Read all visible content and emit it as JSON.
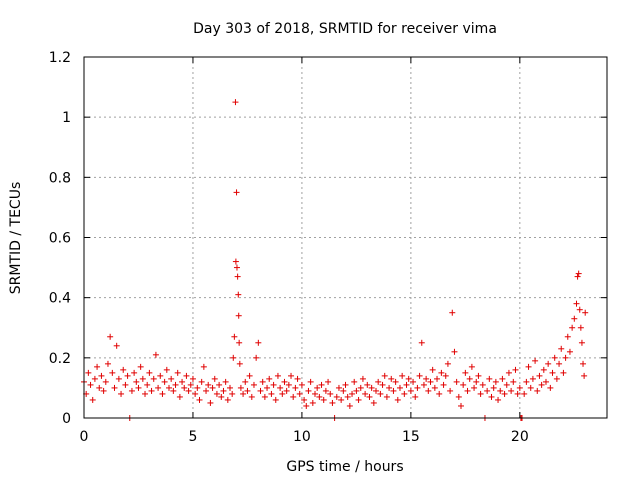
{
  "chart_data": {
    "type": "scatter",
    "title": "Day 303 of 2018, SRMTID for receiver vima",
    "xlabel": "GPS time / hours",
    "ylabel": "SRMTID / TECUs",
    "xlim": [
      0,
      24
    ],
    "ylim": [
      0,
      1.2
    ],
    "x_ticks": [
      0,
      5,
      10,
      15,
      20
    ],
    "x_tick_labels": [
      "0",
      "5",
      "10",
      "15",
      "20"
    ],
    "y_ticks": [
      0,
      0.2,
      0.4,
      0.6,
      0.8,
      1.0,
      1.2
    ],
    "y_tick_labels": [
      "0",
      "0.2",
      "0.4",
      "0.6",
      "0.8",
      "1",
      "1.2"
    ],
    "grid": true,
    "marker": "plus",
    "series": [
      {
        "name": "SRMTID",
        "color": "#e00000",
        "points": [
          [
            0.0,
            0.12
          ],
          [
            0.1,
            0.08
          ],
          [
            0.2,
            0.15
          ],
          [
            0.3,
            0.11
          ],
          [
            0.4,
            0.06
          ],
          [
            0.5,
            0.13
          ],
          [
            0.6,
            0.17
          ],
          [
            0.7,
            0.1
          ],
          [
            0.8,
            0.14
          ],
          [
            0.9,
            0.09
          ],
          [
            1.0,
            0.12
          ],
          [
            1.1,
            0.18
          ],
          [
            1.2,
            0.27
          ],
          [
            1.3,
            0.15
          ],
          [
            1.4,
            0.1
          ],
          [
            1.5,
            0.24
          ],
          [
            1.6,
            0.13
          ],
          [
            1.7,
            0.08
          ],
          [
            1.8,
            0.16
          ],
          [
            1.9,
            0.11
          ],
          [
            2.0,
            0.14
          ],
          [
            2.1,
            0.0
          ],
          [
            2.2,
            0.09
          ],
          [
            2.3,
            0.15
          ],
          [
            2.4,
            0.12
          ],
          [
            2.5,
            0.1
          ],
          [
            2.6,
            0.17
          ],
          [
            2.7,
            0.13
          ],
          [
            2.8,
            0.08
          ],
          [
            2.9,
            0.11
          ],
          [
            3.0,
            0.15
          ],
          [
            3.1,
            0.09
          ],
          [
            3.2,
            0.13
          ],
          [
            3.3,
            0.21
          ],
          [
            3.4,
            0.1
          ],
          [
            3.5,
            0.14
          ],
          [
            3.6,
            0.08
          ],
          [
            3.7,
            0.12
          ],
          [
            3.8,
            0.16
          ],
          [
            3.9,
            0.1
          ],
          [
            4.0,
            0.13
          ],
          [
            4.1,
            0.09
          ],
          [
            4.2,
            0.11
          ],
          [
            4.3,
            0.15
          ],
          [
            4.4,
            0.07
          ],
          [
            4.5,
            0.12
          ],
          [
            4.6,
            0.1
          ],
          [
            4.7,
            0.14
          ],
          [
            4.8,
            0.09
          ],
          [
            4.9,
            0.11
          ],
          [
            5.0,
            0.13
          ],
          [
            5.1,
            0.08
          ],
          [
            5.2,
            0.1
          ],
          [
            5.3,
            0.06
          ],
          [
            5.4,
            0.12
          ],
          [
            5.5,
            0.17
          ],
          [
            5.6,
            0.09
          ],
          [
            5.7,
            0.11
          ],
          [
            5.8,
            0.05
          ],
          [
            5.9,
            0.1
          ],
          [
            6.0,
            0.13
          ],
          [
            6.1,
            0.08
          ],
          [
            6.2,
            0.11
          ],
          [
            6.3,
            0.07
          ],
          [
            6.4,
            0.09
          ],
          [
            6.5,
            0.12
          ],
          [
            6.6,
            0.06
          ],
          [
            6.7,
            0.1
          ],
          [
            6.8,
            0.08
          ],
          [
            6.85,
            0.2
          ],
          [
            6.9,
            0.27
          ],
          [
            6.95,
            1.05
          ],
          [
            7.0,
            0.75
          ],
          [
            6.97,
            0.52
          ],
          [
            7.02,
            0.5
          ],
          [
            7.05,
            0.47
          ],
          [
            7.08,
            0.41
          ],
          [
            7.1,
            0.34
          ],
          [
            7.12,
            0.25
          ],
          [
            7.15,
            0.18
          ],
          [
            7.2,
            0.1
          ],
          [
            7.3,
            0.08
          ],
          [
            7.4,
            0.12
          ],
          [
            7.5,
            0.09
          ],
          [
            7.6,
            0.14
          ],
          [
            7.7,
            0.07
          ],
          [
            7.8,
            0.11
          ],
          [
            7.9,
            0.2
          ],
          [
            8.0,
            0.25
          ],
          [
            8.1,
            0.09
          ],
          [
            8.2,
            0.12
          ],
          [
            8.3,
            0.07
          ],
          [
            8.4,
            0.1
          ],
          [
            8.5,
            0.13
          ],
          [
            8.6,
            0.08
          ],
          [
            8.7,
            0.11
          ],
          [
            8.8,
            0.06
          ],
          [
            8.9,
            0.14
          ],
          [
            9.0,
            0.1
          ],
          [
            9.1,
            0.08
          ],
          [
            9.2,
            0.12
          ],
          [
            9.3,
            0.09
          ],
          [
            9.4,
            0.11
          ],
          [
            9.5,
            0.14
          ],
          [
            9.6,
            0.07
          ],
          [
            9.7,
            0.1
          ],
          [
            9.8,
            0.13
          ],
          [
            9.9,
            0.08
          ],
          [
            10.0,
            0.11
          ],
          [
            10.1,
            0.06
          ],
          [
            10.2,
            0.04
          ],
          [
            10.3,
            0.09
          ],
          [
            10.4,
            0.12
          ],
          [
            10.5,
            0.05
          ],
          [
            10.6,
            0.08
          ],
          [
            10.7,
            0.1
          ],
          [
            10.8,
            0.07
          ],
          [
            10.9,
            0.11
          ],
          [
            11.0,
            0.06
          ],
          [
            11.1,
            0.09
          ],
          [
            11.2,
            0.12
          ],
          [
            11.3,
            0.08
          ],
          [
            11.4,
            0.05
          ],
          [
            11.5,
            0.0
          ],
          [
            11.6,
            0.07
          ],
          [
            11.7,
            0.1
          ],
          [
            11.8,
            0.06
          ],
          [
            11.9,
            0.09
          ],
          [
            12.0,
            0.11
          ],
          [
            12.1,
            0.07
          ],
          [
            12.2,
            0.04
          ],
          [
            12.3,
            0.08
          ],
          [
            12.4,
            0.12
          ],
          [
            12.5,
            0.09
          ],
          [
            12.6,
            0.06
          ],
          [
            12.7,
            0.1
          ],
          [
            12.8,
            0.13
          ],
          [
            12.9,
            0.08
          ],
          [
            13.0,
            0.11
          ],
          [
            13.1,
            0.07
          ],
          [
            13.2,
            0.1
          ],
          [
            13.3,
            0.05
          ],
          [
            13.4,
            0.09
          ],
          [
            13.5,
            0.12
          ],
          [
            13.6,
            0.08
          ],
          [
            13.7,
            0.11
          ],
          [
            13.8,
            0.14
          ],
          [
            13.9,
            0.07
          ],
          [
            14.0,
            0.1
          ],
          [
            14.1,
            0.13
          ],
          [
            14.2,
            0.09
          ],
          [
            14.3,
            0.12
          ],
          [
            14.4,
            0.06
          ],
          [
            14.5,
            0.1
          ],
          [
            14.6,
            0.14
          ],
          [
            14.7,
            0.08
          ],
          [
            14.8,
            0.11
          ],
          [
            14.9,
            0.13
          ],
          [
            15.0,
            0.09
          ],
          [
            15.1,
            0.12
          ],
          [
            15.2,
            0.07
          ],
          [
            15.3,
            0.1
          ],
          [
            15.4,
            0.14
          ],
          [
            15.5,
            0.25
          ],
          [
            15.6,
            0.11
          ],
          [
            15.7,
            0.13
          ],
          [
            15.8,
            0.09
          ],
          [
            15.9,
            0.12
          ],
          [
            16.0,
            0.16
          ],
          [
            16.1,
            0.1
          ],
          [
            16.2,
            0.13
          ],
          [
            16.3,
            0.08
          ],
          [
            16.4,
            0.15
          ],
          [
            16.5,
            0.11
          ],
          [
            16.6,
            0.14
          ],
          [
            16.7,
            0.18
          ],
          [
            16.8,
            0.09
          ],
          [
            16.9,
            0.35
          ],
          [
            17.0,
            0.22
          ],
          [
            17.1,
            0.12
          ],
          [
            17.2,
            0.07
          ],
          [
            17.3,
            0.04
          ],
          [
            17.4,
            0.11
          ],
          [
            17.5,
            0.15
          ],
          [
            17.6,
            0.09
          ],
          [
            17.7,
            0.13
          ],
          [
            17.8,
            0.17
          ],
          [
            17.9,
            0.1
          ],
          [
            18.0,
            0.12
          ],
          [
            18.1,
            0.14
          ],
          [
            18.2,
            0.08
          ],
          [
            18.3,
            0.11
          ],
          [
            18.4,
            0.0
          ],
          [
            18.5,
            0.09
          ],
          [
            18.6,
            0.13
          ],
          [
            18.7,
            0.07
          ],
          [
            18.8,
            0.1
          ],
          [
            18.9,
            0.12
          ],
          [
            19.0,
            0.06
          ],
          [
            19.1,
            0.09
          ],
          [
            19.2,
            0.13
          ],
          [
            19.3,
            0.08
          ],
          [
            19.4,
            0.11
          ],
          [
            19.5,
            0.15
          ],
          [
            19.6,
            0.09
          ],
          [
            19.7,
            0.12
          ],
          [
            19.8,
            0.16
          ],
          [
            19.9,
            0.08
          ],
          [
            20.0,
            0.1
          ],
          [
            20.05,
            0.0
          ],
          [
            20.1,
            0.0
          ],
          [
            20.2,
            0.08
          ],
          [
            20.3,
            0.12
          ],
          [
            20.4,
            0.17
          ],
          [
            20.5,
            0.1
          ],
          [
            20.6,
            0.13
          ],
          [
            20.7,
            0.19
          ],
          [
            20.8,
            0.09
          ],
          [
            20.9,
            0.14
          ],
          [
            21.0,
            0.11
          ],
          [
            21.1,
            0.16
          ],
          [
            21.2,
            0.12
          ],
          [
            21.3,
            0.18
          ],
          [
            21.4,
            0.1
          ],
          [
            21.5,
            0.15
          ],
          [
            21.6,
            0.2
          ],
          [
            21.7,
            0.13
          ],
          [
            21.8,
            0.18
          ],
          [
            21.9,
            0.23
          ],
          [
            22.0,
            0.15
          ],
          [
            22.1,
            0.2
          ],
          [
            22.2,
            0.27
          ],
          [
            22.3,
            0.22
          ],
          [
            22.4,
            0.3
          ],
          [
            22.5,
            0.33
          ],
          [
            22.6,
            0.38
          ],
          [
            22.65,
            0.47
          ],
          [
            22.7,
            0.48
          ],
          [
            22.75,
            0.36
          ],
          [
            22.8,
            0.3
          ],
          [
            22.85,
            0.25
          ],
          [
            22.9,
            0.18
          ],
          [
            22.95,
            0.14
          ],
          [
            23.0,
            0.35
          ]
        ]
      }
    ]
  }
}
